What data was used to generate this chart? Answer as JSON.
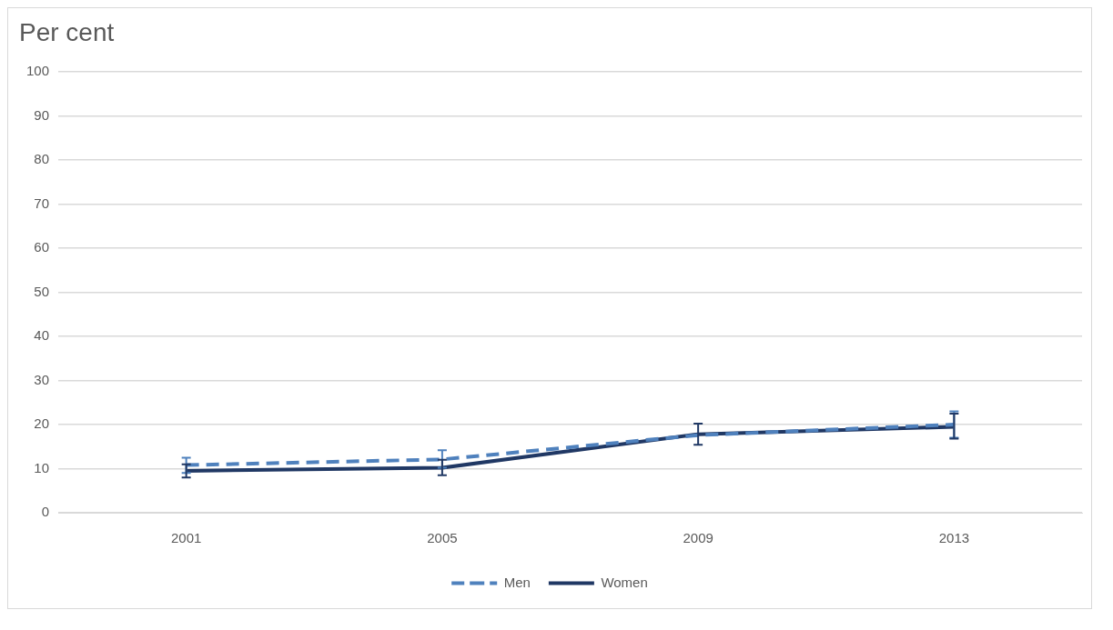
{
  "chart_data": {
    "type": "line",
    "ylabel": "Per cent",
    "categories": [
      "2001",
      "2005",
      "2009",
      "2013"
    ],
    "series": [
      {
        "name": "Men",
        "color": "#4f81bd",
        "line_style": "dashed",
        "values": [
          10.8,
          12.1,
          17.6,
          20.0
        ],
        "errors": [
          [
            9,
            12.5
          ],
          [
            10.2,
            14.2
          ],
          null,
          [
            17,
            23
          ]
        ]
      },
      {
        "name": "Women",
        "color": "#203864",
        "line_style": "solid",
        "values": [
          9.5,
          10.2,
          17.8,
          19.5
        ],
        "errors": [
          [
            8,
            11
          ],
          [
            8.5,
            12
          ],
          [
            15.4,
            20.2
          ],
          [
            16.8,
            22.5
          ]
        ]
      }
    ],
    "ylim": [
      0,
      100
    ],
    "yticks": [
      0,
      10,
      20,
      30,
      40,
      50,
      60,
      70,
      80,
      90,
      100
    ],
    "grid": "y",
    "legend": "bottom",
    "marker": "none"
  }
}
